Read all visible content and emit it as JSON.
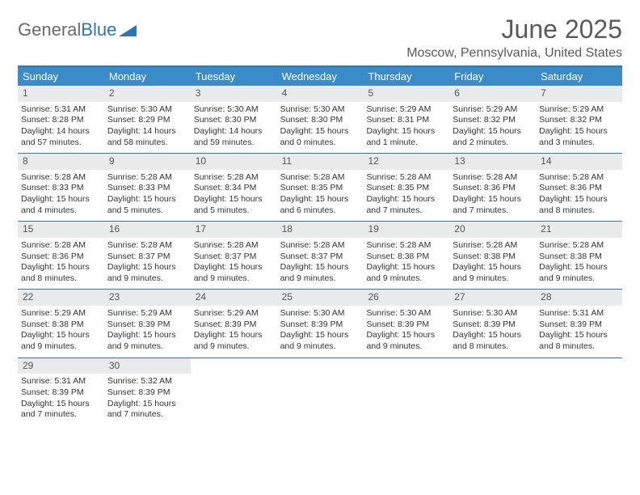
{
  "logo": {
    "text1": "General",
    "text2": "Blue"
  },
  "title": "June 2025",
  "location": "Moscow, Pennsylvania, United States",
  "colors": {
    "header_bg": "#3b8bc9",
    "border": "#2f74b5",
    "daynum_bg": "#e9eaeb",
    "text": "#333333",
    "title_text": "#5a5a5a"
  },
  "day_names": [
    "Sunday",
    "Monday",
    "Tuesday",
    "Wednesday",
    "Thursday",
    "Friday",
    "Saturday"
  ],
  "weeks": [
    [
      {
        "n": "1",
        "sr": "Sunrise: 5:31 AM",
        "ss": "Sunset: 8:28 PM",
        "dl": "Daylight: 14 hours and 57 minutes."
      },
      {
        "n": "2",
        "sr": "Sunrise: 5:30 AM",
        "ss": "Sunset: 8:29 PM",
        "dl": "Daylight: 14 hours and 58 minutes."
      },
      {
        "n": "3",
        "sr": "Sunrise: 5:30 AM",
        "ss": "Sunset: 8:30 PM",
        "dl": "Daylight: 14 hours and 59 minutes."
      },
      {
        "n": "4",
        "sr": "Sunrise: 5:30 AM",
        "ss": "Sunset: 8:30 PM",
        "dl": "Daylight: 15 hours and 0 minutes."
      },
      {
        "n": "5",
        "sr": "Sunrise: 5:29 AM",
        "ss": "Sunset: 8:31 PM",
        "dl": "Daylight: 15 hours and 1 minute."
      },
      {
        "n": "6",
        "sr": "Sunrise: 5:29 AM",
        "ss": "Sunset: 8:32 PM",
        "dl": "Daylight: 15 hours and 2 minutes."
      },
      {
        "n": "7",
        "sr": "Sunrise: 5:29 AM",
        "ss": "Sunset: 8:32 PM",
        "dl": "Daylight: 15 hours and 3 minutes."
      }
    ],
    [
      {
        "n": "8",
        "sr": "Sunrise: 5:28 AM",
        "ss": "Sunset: 8:33 PM",
        "dl": "Daylight: 15 hours and 4 minutes."
      },
      {
        "n": "9",
        "sr": "Sunrise: 5:28 AM",
        "ss": "Sunset: 8:33 PM",
        "dl": "Daylight: 15 hours and 5 minutes."
      },
      {
        "n": "10",
        "sr": "Sunrise: 5:28 AM",
        "ss": "Sunset: 8:34 PM",
        "dl": "Daylight: 15 hours and 5 minutes."
      },
      {
        "n": "11",
        "sr": "Sunrise: 5:28 AM",
        "ss": "Sunset: 8:35 PM",
        "dl": "Daylight: 15 hours and 6 minutes."
      },
      {
        "n": "12",
        "sr": "Sunrise: 5:28 AM",
        "ss": "Sunset: 8:35 PM",
        "dl": "Daylight: 15 hours and 7 minutes."
      },
      {
        "n": "13",
        "sr": "Sunrise: 5:28 AM",
        "ss": "Sunset: 8:36 PM",
        "dl": "Daylight: 15 hours and 7 minutes."
      },
      {
        "n": "14",
        "sr": "Sunrise: 5:28 AM",
        "ss": "Sunset: 8:36 PM",
        "dl": "Daylight: 15 hours and 8 minutes."
      }
    ],
    [
      {
        "n": "15",
        "sr": "Sunrise: 5:28 AM",
        "ss": "Sunset: 8:36 PM",
        "dl": "Daylight: 15 hours and 8 minutes."
      },
      {
        "n": "16",
        "sr": "Sunrise: 5:28 AM",
        "ss": "Sunset: 8:37 PM",
        "dl": "Daylight: 15 hours and 9 minutes."
      },
      {
        "n": "17",
        "sr": "Sunrise: 5:28 AM",
        "ss": "Sunset: 8:37 PM",
        "dl": "Daylight: 15 hours and 9 minutes."
      },
      {
        "n": "18",
        "sr": "Sunrise: 5:28 AM",
        "ss": "Sunset: 8:37 PM",
        "dl": "Daylight: 15 hours and 9 minutes."
      },
      {
        "n": "19",
        "sr": "Sunrise: 5:28 AM",
        "ss": "Sunset: 8:38 PM",
        "dl": "Daylight: 15 hours and 9 minutes."
      },
      {
        "n": "20",
        "sr": "Sunrise: 5:28 AM",
        "ss": "Sunset: 8:38 PM",
        "dl": "Daylight: 15 hours and 9 minutes."
      },
      {
        "n": "21",
        "sr": "Sunrise: 5:28 AM",
        "ss": "Sunset: 8:38 PM",
        "dl": "Daylight: 15 hours and 9 minutes."
      }
    ],
    [
      {
        "n": "22",
        "sr": "Sunrise: 5:29 AM",
        "ss": "Sunset: 8:38 PM",
        "dl": "Daylight: 15 hours and 9 minutes."
      },
      {
        "n": "23",
        "sr": "Sunrise: 5:29 AM",
        "ss": "Sunset: 8:39 PM",
        "dl": "Daylight: 15 hours and 9 minutes."
      },
      {
        "n": "24",
        "sr": "Sunrise: 5:29 AM",
        "ss": "Sunset: 8:39 PM",
        "dl": "Daylight: 15 hours and 9 minutes."
      },
      {
        "n": "25",
        "sr": "Sunrise: 5:30 AM",
        "ss": "Sunset: 8:39 PM",
        "dl": "Daylight: 15 hours and 9 minutes."
      },
      {
        "n": "26",
        "sr": "Sunrise: 5:30 AM",
        "ss": "Sunset: 8:39 PM",
        "dl": "Daylight: 15 hours and 9 minutes."
      },
      {
        "n": "27",
        "sr": "Sunrise: 5:30 AM",
        "ss": "Sunset: 8:39 PM",
        "dl": "Daylight: 15 hours and 8 minutes."
      },
      {
        "n": "28",
        "sr": "Sunrise: 5:31 AM",
        "ss": "Sunset: 8:39 PM",
        "dl": "Daylight: 15 hours and 8 minutes."
      }
    ],
    [
      {
        "n": "29",
        "sr": "Sunrise: 5:31 AM",
        "ss": "Sunset: 8:39 PM",
        "dl": "Daylight: 15 hours and 7 minutes."
      },
      {
        "n": "30",
        "sr": "Sunrise: 5:32 AM",
        "ss": "Sunset: 8:39 PM",
        "dl": "Daylight: 15 hours and 7 minutes."
      },
      null,
      null,
      null,
      null,
      null
    ]
  ]
}
